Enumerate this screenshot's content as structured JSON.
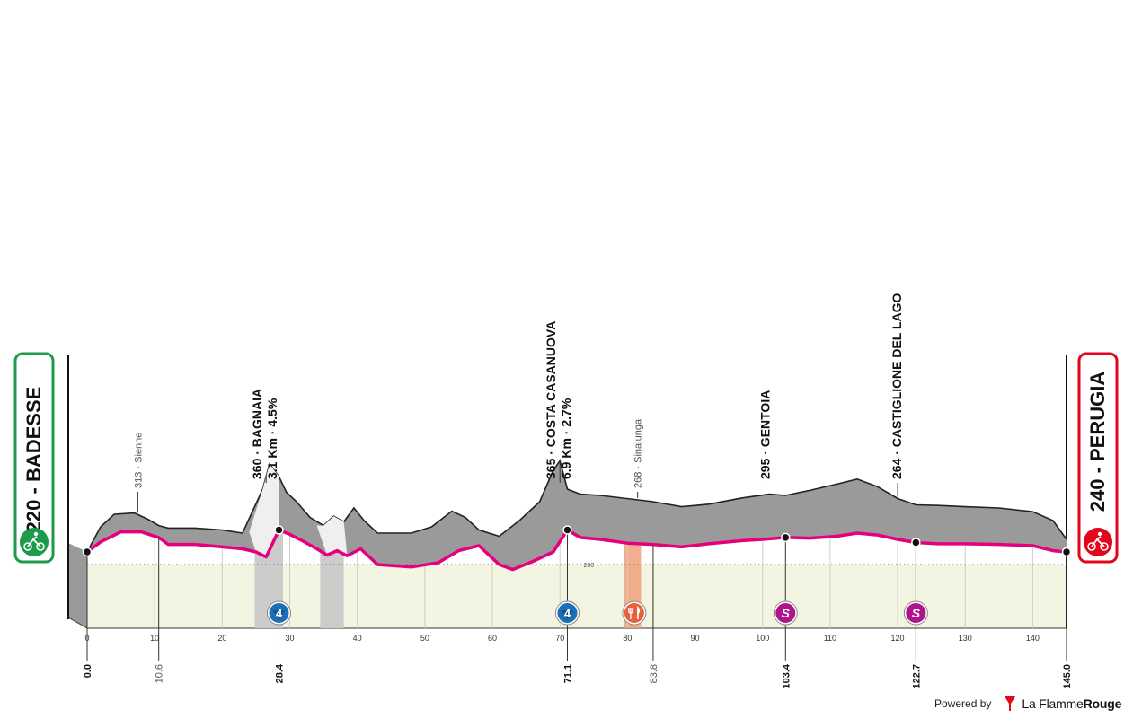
{
  "chart_data": {
    "type": "area",
    "title": "",
    "xlabel": "",
    "ylabel": "",
    "xlim": [
      0,
      145
    ],
    "x_ticks": [
      0,
      10,
      20,
      30,
      40,
      50,
      60,
      70,
      80,
      90,
      100,
      110,
      120,
      130,
      140
    ],
    "reference_altitude": 200,
    "series": [
      {
        "name": "altitude",
        "points": [
          [
            0,
            220
          ],
          [
            2,
            260
          ],
          [
            4,
            280
          ],
          [
            7,
            282
          ],
          [
            9,
            272
          ],
          [
            10.6,
            262
          ],
          [
            12,
            258
          ],
          [
            16,
            258
          ],
          [
            20,
            255
          ],
          [
            23,
            250
          ],
          [
            26,
            320
          ],
          [
            27,
            360
          ],
          [
            28.4,
            340
          ],
          [
            29.5,
            315
          ],
          [
            31,
            300
          ],
          [
            33,
            275
          ],
          [
            35,
            262
          ],
          [
            36.5,
            277
          ],
          [
            38,
            268
          ],
          [
            39.5,
            290
          ],
          [
            41,
            270
          ],
          [
            43,
            250
          ],
          [
            48,
            250
          ],
          [
            51,
            260
          ],
          [
            54,
            285
          ],
          [
            56,
            275
          ],
          [
            58,
            255
          ],
          [
            61,
            245
          ],
          [
            64,
            270
          ],
          [
            67,
            300
          ],
          [
            69,
            350
          ],
          [
            70,
            365
          ],
          [
            71.1,
            320
          ],
          [
            73,
            312
          ],
          [
            76,
            310
          ],
          [
            83.8,
            300
          ],
          [
            88,
            292
          ],
          [
            92,
            296
          ],
          [
            97,
            306
          ],
          [
            101,
            312
          ],
          [
            103.4,
            310
          ],
          [
            107,
            318
          ],
          [
            111,
            328
          ],
          [
            114,
            336
          ],
          [
            117,
            324
          ],
          [
            120,
            305
          ],
          [
            122.7,
            295
          ],
          [
            126,
            294
          ],
          [
            130,
            292
          ],
          [
            135,
            290
          ],
          [
            140,
            284
          ],
          [
            143,
            270
          ],
          [
            145,
            240
          ]
        ]
      },
      {
        "name": "route-line",
        "points": [
          [
            0,
            220
          ],
          [
            2,
            236
          ],
          [
            5,
            252
          ],
          [
            8,
            252
          ],
          [
            10.6,
            243
          ],
          [
            12,
            232
          ],
          [
            16,
            232
          ],
          [
            20,
            228
          ],
          [
            23,
            225
          ],
          [
            25,
            220
          ],
          [
            26.5,
            212
          ],
          [
            28.4,
            255
          ],
          [
            30,
            248
          ],
          [
            32,
            237
          ],
          [
            34,
            225
          ],
          [
            35.5,
            215
          ],
          [
            37,
            222
          ],
          [
            38.5,
            214
          ],
          [
            40.5,
            225
          ],
          [
            43,
            200
          ],
          [
            48,
            196
          ],
          [
            52,
            203
          ],
          [
            55,
            222
          ],
          [
            58,
            230
          ],
          [
            61,
            200
          ],
          [
            63,
            192
          ],
          [
            66,
            205
          ],
          [
            69,
            220
          ],
          [
            71.1,
            255
          ],
          [
            73,
            243
          ],
          [
            76,
            240
          ],
          [
            80,
            234
          ],
          [
            83.8,
            232
          ],
          [
            88,
            228
          ],
          [
            92,
            233
          ],
          [
            97,
            238
          ],
          [
            100,
            240
          ],
          [
            103.4,
            243
          ],
          [
            107,
            242
          ],
          [
            111,
            245
          ],
          [
            114,
            250
          ],
          [
            117,
            247
          ],
          [
            120,
            240
          ],
          [
            122.7,
            235
          ],
          [
            126,
            233
          ],
          [
            130,
            233
          ],
          [
            135,
            232
          ],
          [
            140,
            230
          ],
          [
            143,
            222
          ],
          [
            145,
            220
          ]
        ]
      }
    ],
    "gray_bands": [
      [
        24.8,
        29
      ],
      [
        34.5,
        38
      ]
    ],
    "feed_band": [
      79.5,
      82
    ],
    "top_labels": [
      {
        "km": 7.5,
        "line1": "313 · Sienne",
        "line2": "",
        "major": false
      },
      {
        "km": 26.5,
        "line1": "360 · BAGNAIA",
        "line2": "3.1 Km · 4.5%",
        "major": true
      },
      {
        "km": 70,
        "line1": "365 · COSTA CASANUOVA",
        "line2": "6.9 Km · 2.7%",
        "major": true
      },
      {
        "km": 81.5,
        "line1": "268 · Sinalunga",
        "line2": "",
        "major": false
      },
      {
        "km": 100.5,
        "line1": "295 · GENTOIA",
        "line2": "",
        "major": true
      },
      {
        "km": 120,
        "line1": "264 · CASTIGLIONE DEL LAGO",
        "line2": "",
        "major": true
      }
    ],
    "bottom_labels": [
      {
        "km": 0,
        "text": "0.0",
        "major": true
      },
      {
        "km": 10.6,
        "text": "10.6",
        "major": false
      },
      {
        "km": 28.4,
        "text": "28.4",
        "major": true
      },
      {
        "km": 71.1,
        "text": "71.1",
        "major": true
      },
      {
        "km": 83.8,
        "text": "83.8",
        "major": false
      },
      {
        "km": 103.4,
        "text": "103.4",
        "major": true
      },
      {
        "km": 122.7,
        "text": "122.7",
        "major": true
      },
      {
        "km": 145.0,
        "text": "145.0",
        "major": true
      }
    ],
    "waypoints": [
      0,
      28.4,
      71.1,
      103.4,
      122.7,
      145
    ],
    "markers": [
      {
        "km": 28.4,
        "type": "climb",
        "label": "4",
        "icon": "climb-category-icon"
      },
      {
        "km": 71.1,
        "type": "climb",
        "label": "4",
        "icon": "climb-category-icon"
      },
      {
        "km": 81,
        "type": "feed",
        "label": "",
        "icon": "feed-zone-icon"
      },
      {
        "km": 103.4,
        "type": "sprint",
        "label": "S",
        "icon": "sprint-icon"
      },
      {
        "km": 122.7,
        "type": "sprint",
        "label": "S",
        "icon": "sprint-icon"
      }
    ]
  },
  "start": {
    "label": "220 - BADESSE",
    "icon": "start-cyclist-icon"
  },
  "finish": {
    "label": "240 - PERUGIA",
    "icon": "finish-cyclist-icon"
  },
  "footer": {
    "powered": "Powered by",
    "brand_light": "La Flamme",
    "brand_bold": "Rouge",
    "icon": "la-flamme-rouge-logo-icon"
  },
  "colors": {
    "profile_gray": "#9a9a9a",
    "route_pink": "#e6007e",
    "base_fill": "#f4f4e3",
    "start_green": "#1e9b4a",
    "finish_red": "#e3051b",
    "climb_blue": "#1a6fb5",
    "feed_orange": "#f0a07a",
    "sprint_purple": "#b0148a"
  }
}
